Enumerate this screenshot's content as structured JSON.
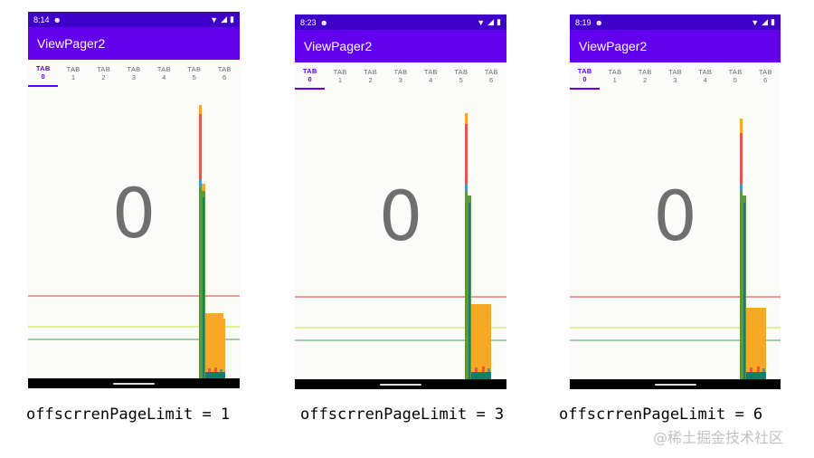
{
  "app_title": "ViewPager2",
  "tabs": [
    {
      "label": "TAB",
      "num": "0"
    },
    {
      "label": "TAB",
      "num": "1"
    },
    {
      "label": "TAB",
      "num": "2"
    },
    {
      "label": "TAB",
      "num": "3"
    },
    {
      "label": "TAB",
      "num": "4"
    },
    {
      "label": "TAB",
      "num": "5"
    },
    {
      "label": "TAB",
      "num": "6"
    }
  ],
  "phones": [
    {
      "time": "8:14",
      "page_number": "0",
      "caption": "offscrrenPageLimit = 1"
    },
    {
      "time": "8:23",
      "page_number": "0",
      "caption": "offscrrenPageLimit = 3"
    },
    {
      "time": "8:19",
      "page_number": "0",
      "caption": "offscrrenPageLimit = 6"
    }
  ],
  "watermark": "@稀土掘金技术社区",
  "colors": {
    "status_bar": "#3e00c8",
    "app_bar": "#6200ee",
    "tab_active": "#6200ee",
    "profile_red_line": "#e53935",
    "profile_yellow_line": "#cddc39",
    "profile_green_line": "#43a047",
    "bar_orange": "#f9a825",
    "bar_red": "#e15a4a",
    "bar_green": "#5b9a3c",
    "bar_teal": "#137e6d",
    "bar_blue": "#4a90d9"
  }
}
